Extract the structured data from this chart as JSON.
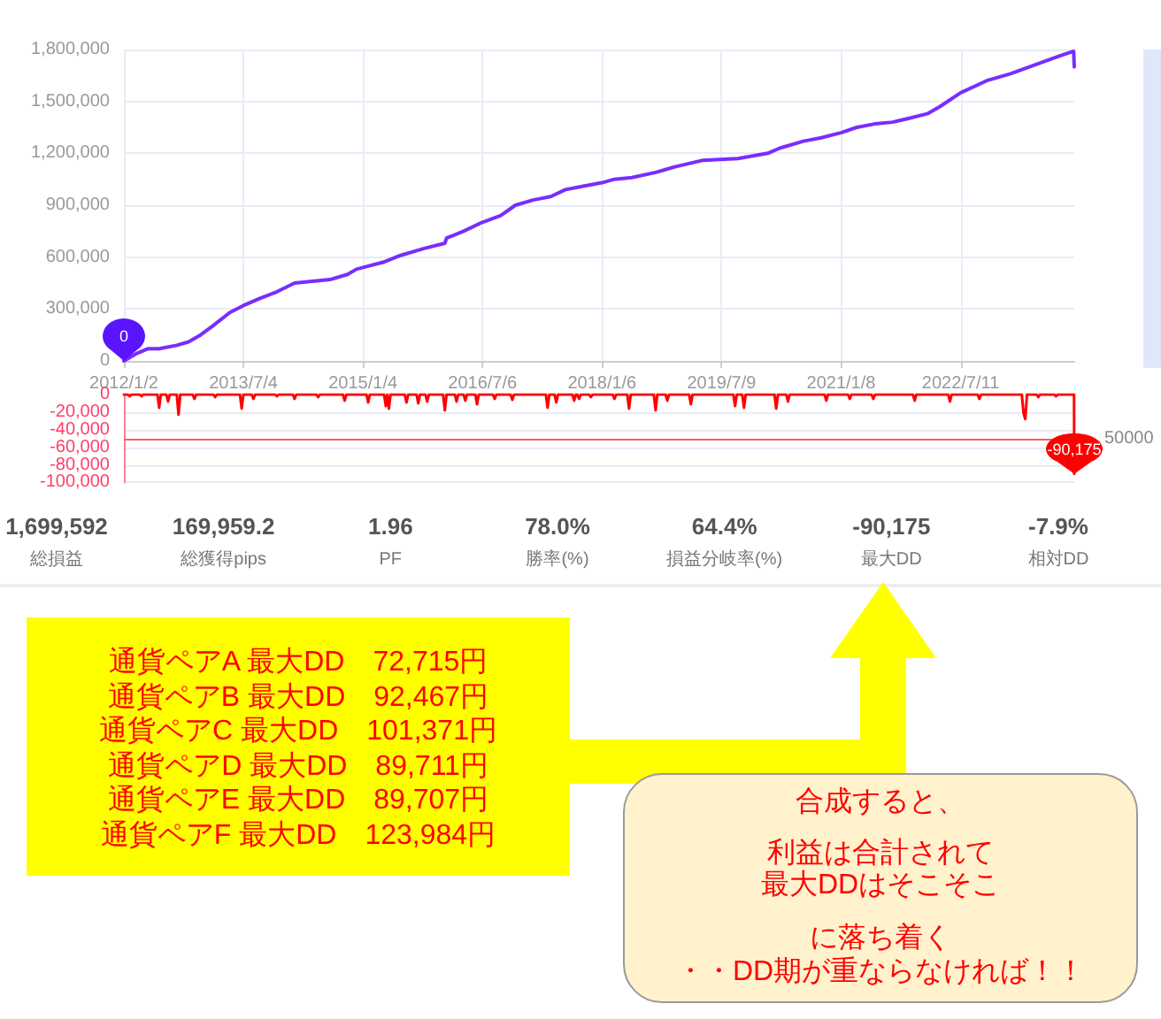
{
  "chart_data": [
    {
      "type": "line",
      "color": "#7a2cff",
      "x": [
        "2012-01-02",
        "2012-02-25",
        "2012-04-20",
        "2012-06-11",
        "2012-09-01",
        "2012-10-25",
        "2012-12-19",
        "2013-02-11",
        "2013-05-03",
        "2013-07-04",
        "2013-09-15",
        "2013-12-05",
        "2014-02-24",
        "2014-05-16",
        "2014-08-05",
        "2014-10-25",
        "2014-12-05",
        "2015-01-04",
        "2015-04-06",
        "2015-06-26",
        "2015-10-12",
        "2016-01-15",
        "2016-01-23",
        "2016-04-10",
        "2016-07-03",
        "2016-09-28",
        "2016-12-04",
        "2017-02-23",
        "2017-05-15",
        "2017-07-22",
        "2017-10-11",
        "2018-01-06",
        "2018-03-03",
        "2018-05-23",
        "2018-09-10",
        "2018-12-01",
        "2019-04-15",
        "2019-09-22",
        "2020-02-06",
        "2020-04-01",
        "2020-07-19",
        "2020-10-09",
        "2021-01-10",
        "2021-03-21",
        "2021-06-11",
        "2021-09-01",
        "2021-11-08",
        "2022-02-11",
        "2022-04-07",
        "2022-07-11",
        "2022-11-08",
        "2023-02-25",
        "2023-06-14",
        "2023-10-01",
        "2023-12-12",
        "2023-12-15"
      ],
      "values": [
        0,
        40000,
        70000,
        70000,
        90000,
        110000,
        150000,
        200000,
        280000,
        320000,
        360000,
        400000,
        450000,
        460000,
        470000,
        500000,
        530000,
        540000,
        570000,
        610000,
        650000,
        680000,
        710000,
        750000,
        800000,
        840000,
        900000,
        930000,
        950000,
        990000,
        1010000,
        1030000,
        1050000,
        1060000,
        1090000,
        1120000,
        1160000,
        1170000,
        1200000,
        1230000,
        1270000,
        1290000,
        1320000,
        1350000,
        1370000,
        1380000,
        1400000,
        1430000,
        1470000,
        1550000,
        1620000,
        1660000,
        1710000,
        1760000,
        1790000,
        1700000
      ],
      "xlim": [
        "2012-01-02",
        "2023-12-15"
      ],
      "xticks": [
        {
          "value": "2012-01-02",
          "label": "2012/1/2"
        },
        {
          "value": "2013-07-04",
          "label": "2013/7/4"
        },
        {
          "value": "2015-01-04",
          "label": "2015/1/4"
        },
        {
          "value": "2016-07-06",
          "label": "2016/7/6"
        },
        {
          "value": "2018-01-06",
          "label": "2018/1/6"
        },
        {
          "value": "2019-07-09",
          "label": "2019/7/9"
        },
        {
          "value": "2021-01-08",
          "label": "2021/1/8"
        },
        {
          "value": "2022-07-11",
          "label": "2022/7/11"
        }
      ],
      "ylim": [
        0,
        1800000
      ],
      "yticks": [
        {
          "value": 0,
          "label": "0"
        },
        {
          "value": 300000,
          "label": "300,000"
        },
        {
          "value": 600000,
          "label": "600,000"
        },
        {
          "value": 900000,
          "label": "900,000"
        },
        {
          "value": 1200000,
          "label": "1,200,000"
        },
        {
          "value": 1500000,
          "label": "1,500,000"
        },
        {
          "value": 1800000,
          "label": "1,800,000"
        }
      ],
      "grid": true,
      "annotations": [
        {
          "text": "0",
          "x": "2012-01-02",
          "y": 0
        }
      ]
    },
    {
      "type": "line",
      "color": "#ff0000",
      "x": [
        "2012-01-02",
        "2012-01-21",
        "2012-01-29",
        "2012-02-06",
        "2012-03-15",
        "2012-03-23",
        "2012-03-31",
        "2012-06-04",
        "2012-06-12",
        "2012-06-20",
        "2012-07-15",
        "2012-07-23",
        "2012-07-31",
        "2012-09-01",
        "2012-09-09",
        "2012-09-17",
        "2012-11-13",
        "2012-11-21",
        "2012-11-29",
        "2013-02-16",
        "2013-02-24",
        "2013-03-04",
        "2013-06-18",
        "2013-06-26",
        "2013-07-04",
        "2013-08-11",
        "2013-08-19",
        "2013-08-27",
        "2013-11-27",
        "2013-12-05",
        "2013-12-13",
        "2014-02-16",
        "2014-02-24",
        "2014-03-04",
        "2014-06-04",
        "2014-06-12",
        "2014-06-20",
        "2014-10-04",
        "2014-10-12",
        "2014-10-20",
        "2015-01-20",
        "2015-01-28",
        "2015-02-05",
        "2015-04-11",
        "2015-04-19",
        "2015-04-26",
        "2015-05-03",
        "2015-05-11",
        "2015-07-15",
        "2015-07-23",
        "2015-07-31",
        "2015-09-07",
        "2015-09-15",
        "2015-09-23",
        "2015-10-18",
        "2015-10-26",
        "2015-11-03",
        "2016-01-07",
        "2016-01-15",
        "2016-01-23",
        "2016-03-01",
        "2016-03-09",
        "2016-03-17",
        "2016-04-10",
        "2016-04-18",
        "2016-04-26",
        "2016-06-03",
        "2016-06-11",
        "2016-06-19",
        "2016-08-23",
        "2016-08-31",
        "2016-09-08",
        "2016-11-12",
        "2016-11-20",
        "2016-11-28",
        "2017-04-23",
        "2017-05-01",
        "2017-05-09",
        "2017-06-02",
        "2017-06-10",
        "2017-06-18",
        "2017-08-23",
        "2017-08-31",
        "2017-09-08",
        "2017-09-15",
        "2017-09-23",
        "2017-10-01",
        "2017-11-08",
        "2017-11-16",
        "2017-11-24",
        "2018-02-24",
        "2018-03-04",
        "2018-03-12",
        "2018-05-02",
        "2018-05-10",
        "2018-05-18",
        "2018-09-01",
        "2018-09-09",
        "2018-09-17",
        "2018-10-25",
        "2018-11-02",
        "2018-11-10",
        "2019-02-10",
        "2019-02-18",
        "2019-02-26",
        "2019-09-01",
        "2019-09-09",
        "2019-09-17",
        "2019-10-12",
        "2019-10-20",
        "2019-10-28",
        "2020-03-08",
        "2020-03-16",
        "2020-03-24",
        "2020-05-01",
        "2020-05-09",
        "2020-05-17",
        "2020-10-24",
        "2020-11-01",
        "2020-11-09",
        "2021-02-09",
        "2021-02-17",
        "2021-02-25",
        "2021-05-28",
        "2021-06-05",
        "2021-06-13",
        "2021-12-04",
        "2021-12-12",
        "2021-12-20",
        "2022-05-15",
        "2022-05-23",
        "2022-05-31",
        "2022-09-27",
        "2022-10-05",
        "2022-10-13",
        "2023-04-18",
        "2023-04-26",
        "2023-05-04",
        "2023-05-12",
        "2023-06-25",
        "2023-07-03",
        "2023-07-11",
        "2023-09-14",
        "2023-09-22",
        "2023-09-30",
        "2023-12-14",
        "2023-12-15"
      ],
      "values": [
        0,
        0,
        -2000,
        0,
        0,
        -2000,
        0,
        0,
        -15000,
        0,
        0,
        -8000,
        0,
        0,
        -23000,
        0,
        0,
        -5000,
        0,
        0,
        -3000,
        0,
        0,
        -16000,
        0,
        0,
        -5000,
        0,
        0,
        -2000,
        0,
        0,
        -5000,
        0,
        0,
        -3000,
        0,
        0,
        -7000,
        0,
        0,
        -9000,
        0,
        0,
        -13000,
        0,
        -16000,
        0,
        0,
        -9000,
        0,
        0,
        -10000,
        0,
        0,
        -8000,
        0,
        0,
        -18000,
        0,
        0,
        -8000,
        0,
        0,
        -7000,
        0,
        0,
        -11000,
        0,
        0,
        -5000,
        0,
        0,
        -6000,
        0,
        0,
        -15000,
        0,
        0,
        -9000,
        0,
        0,
        -7000,
        0,
        0,
        -5000,
        0,
        0,
        -3000,
        0,
        0,
        -5000,
        0,
        0,
        -16000,
        0,
        0,
        -18000,
        0,
        0,
        -7000,
        0,
        0,
        -11000,
        0,
        0,
        -13000,
        0,
        0,
        -15000,
        0,
        0,
        -16000,
        0,
        0,
        -8000,
        0,
        0,
        -7000,
        0,
        0,
        -5000,
        0,
        0,
        -5000,
        0,
        0,
        -7000,
        0,
        0,
        -8000,
        0,
        0,
        -5000,
        0,
        0,
        -21000,
        -28000,
        0,
        0,
        -3000,
        0,
        0,
        -2000,
        0,
        0,
        -90175
      ],
      "xlim": [
        "2012-01-02",
        "2023-12-15"
      ],
      "ylim": [
        -100000,
        0
      ],
      "yticks": [
        {
          "value": 0,
          "label": "0"
        },
        {
          "value": -20000,
          "label": "-20,000"
        },
        {
          "value": -40000,
          "label": "-40,000"
        },
        {
          "value": -60000,
          "label": "-60,000"
        },
        {
          "value": -80000,
          "label": "-80,000"
        },
        {
          "value": -100000,
          "label": "-100,000"
        }
      ],
      "grid": "y",
      "tick_labels": "y",
      "ref_lines": [
        {
          "axis": "y",
          "value": -50000,
          "color": "#ff5a6a"
        }
      ],
      "annotations": [
        {
          "text": "50000",
          "x": "2023-12-15",
          "y": -50000
        },
        {
          "text": "-90,175",
          "x": "2023-12-15",
          "y": -90175
        }
      ]
    },
    {
      "type": "other",
      "annotations": [
        "1,699,592",
        "総損益",
        "169,959.2",
        "総獲得pips",
        "1.96",
        "PF",
        "78.0%",
        "勝率(%)",
        "64.4%",
        "損益分岐率(%)",
        "-90,175",
        "最大DD",
        "-7.9%",
        "相対DD"
      ]
    },
    {
      "type": "other",
      "annotations": [
        "通貨ペアA 最大DD　72,715円",
        "通貨ペアB 最大DD　92,467円",
        "通貨ペアC 最大DD　101,371円",
        "通貨ペアD 最大DD　89,711円",
        "通貨ペアE 最大DD　89,707円",
        "通貨ペアF 最大DD　123,984円"
      ]
    },
    {
      "type": "other",
      "annotations": [
        "合成すると、",
        "利益は合計されて",
        "最大DDはそこそこ",
        "に落ち着く",
        "・・DD期が重ならなければ！！"
      ]
    }
  ]
}
